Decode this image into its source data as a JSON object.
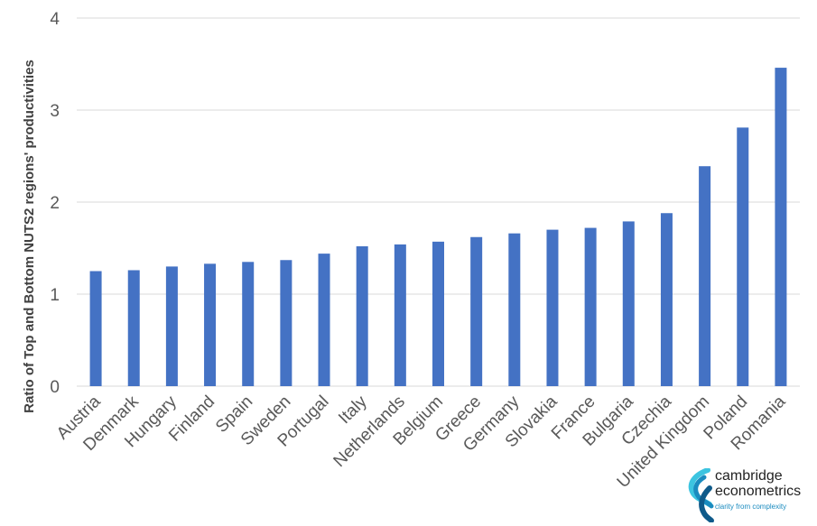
{
  "chart_data": {
    "type": "bar",
    "ylabel": "Ratio of Top and Bottom NUTS2 regions' productivities",
    "xlabel": "",
    "ylim": [
      0,
      4
    ],
    "yticks": [
      0,
      1,
      2,
      3,
      4
    ],
    "grid": true,
    "bar_color": "#4472c4",
    "categories": [
      "Austria",
      "Denmark",
      "Hungary",
      "Finland",
      "Spain",
      "Sweden",
      "Portugal",
      "Italy",
      "Netherlands",
      "Belgium",
      "Greece",
      "Germany",
      "Slovakia",
      "France",
      "Bulgaria",
      "Czechia",
      "United Kingdom",
      "Poland",
      "Romania"
    ],
    "values": [
      1.25,
      1.26,
      1.3,
      1.33,
      1.35,
      1.37,
      1.44,
      1.52,
      1.54,
      1.57,
      1.62,
      1.66,
      1.7,
      1.72,
      1.79,
      1.88,
      2.39,
      2.81,
      3.46
    ]
  },
  "logo": {
    "line1": "cambridge",
    "line2": "econometrics",
    "tagline": "clarity from complexity",
    "colors": [
      "#1a8bbf",
      "#3cc4e0",
      "#0e5a8a"
    ]
  }
}
